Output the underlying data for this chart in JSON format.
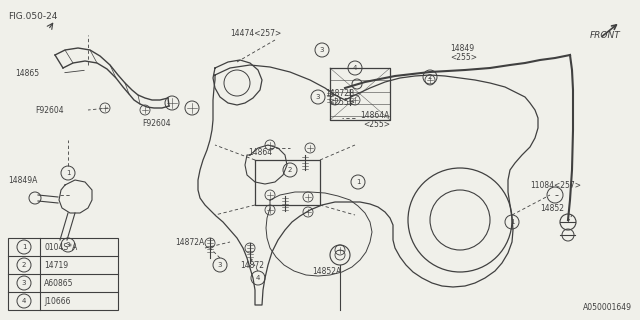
{
  "bg_color": "#f0f0ea",
  "line_color": "#404040",
  "title": "FIG.050-24",
  "part_number_br": "A050001649",
  "figsize": [
    6.4,
    3.2
  ],
  "dpi": 100,
  "legend": [
    {
      "num": "1",
      "code": "0104S*A"
    },
    {
      "num": "2",
      "code": "14719"
    },
    {
      "num": "3",
      "code": "A60865"
    },
    {
      "num": "4",
      "code": "J10666"
    }
  ]
}
